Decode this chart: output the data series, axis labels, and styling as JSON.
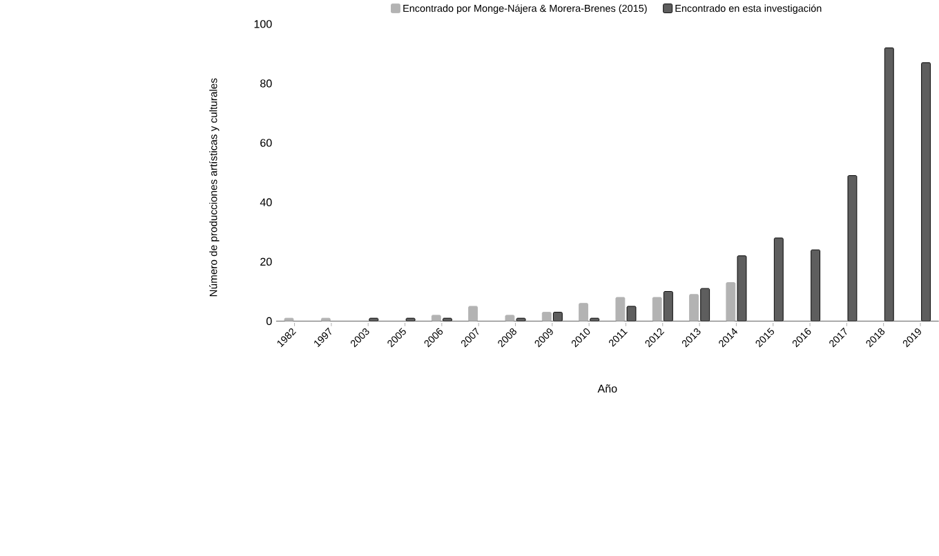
{
  "chart_data": {
    "type": "bar",
    "xlabel": "Año",
    "ylabel": "Número de producciones artísticas y culturales",
    "categories": [
      "1982",
      "1997",
      "2003",
      "2005",
      "2006",
      "2007",
      "2008",
      "2009",
      "2010",
      "2011",
      "2012",
      "2013",
      "2014",
      "2015",
      "2016",
      "2017",
      "2018",
      "2019"
    ],
    "series": [
      {
        "name": "Encontrado por Monge-Nájera & Morera-Brenes (2015)",
        "color": "#b3b3b3",
        "values": [
          1,
          1,
          null,
          null,
          2,
          5,
          2,
          3,
          6,
          8,
          8,
          9,
          13,
          null,
          null,
          null,
          null,
          null
        ]
      },
      {
        "name": "Encontrado en esta investigación",
        "color": "#5e5e5e",
        "values": [
          null,
          null,
          1,
          1,
          1,
          null,
          1,
          3,
          1,
          5,
          10,
          11,
          22,
          28,
          24,
          49,
          92,
          87
        ]
      }
    ],
    "ylim": [
      0,
      100
    ],
    "yticks": [
      0,
      20,
      40,
      60,
      80,
      100
    ],
    "grid": false,
    "legend": "top"
  }
}
